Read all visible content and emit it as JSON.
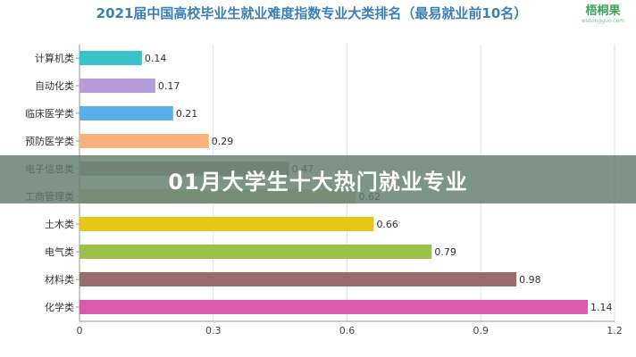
{
  "logo": {
    "main": "梧桐果",
    "sub": "wutongguo.com"
  },
  "overlay": {
    "headline": "01月大学生十大热门就业专业"
  },
  "chart_data": {
    "type": "bar",
    "orientation": "horizontal",
    "title": "2021届中国高校毕业生就业难度指数专业大类排名（最易就业前10名）",
    "categories": [
      "计算机类",
      "自动化类",
      "临床医学类",
      "预防医学类",
      "电子信息类",
      "工商管理类",
      "土木类",
      "电气类",
      "材料类",
      "化学类"
    ],
    "values": [
      0.14,
      0.17,
      0.21,
      0.29,
      0.47,
      0.62,
      0.66,
      0.79,
      0.98,
      1.14
    ],
    "value_labels": [
      "0.14",
      "0.17",
      "0.21",
      "0.29",
      "0.47",
      "0.62",
      "0.66",
      "0.79",
      "0.98",
      "1.14"
    ],
    "bar_colors": [
      "#39c3c8",
      "#b39ddb",
      "#5aaee8",
      "#f9b27b",
      "#c3a59a",
      "#c6d9a0",
      "#e8c714",
      "#9bc04b",
      "#9a6d6d",
      "#d85aac"
    ],
    "xlim": [
      0,
      1.2
    ],
    "x_ticks": [
      0,
      0.3,
      0.6,
      0.9,
      1.2
    ],
    "x_tick_labels": [
      "0",
      "0.3",
      "0.6",
      "0.9",
      "1.2"
    ],
    "grid": true,
    "xlabel": "",
    "ylabel": ""
  }
}
